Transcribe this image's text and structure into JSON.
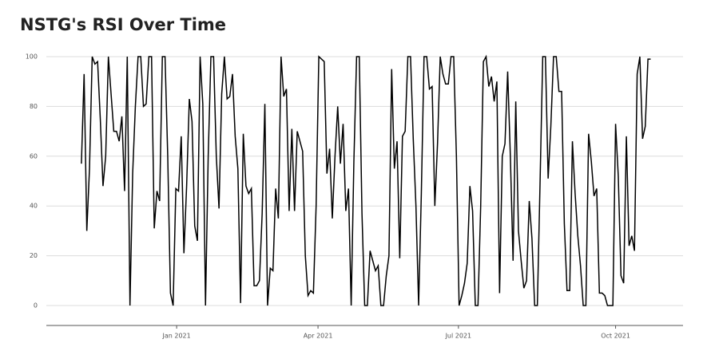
{
  "chart_data": {
    "type": "line",
    "title": "NSTG's RSI Over Time",
    "values": [
      57,
      93,
      30,
      55,
      100,
      97,
      98,
      75,
      48,
      60,
      100,
      85,
      70,
      70,
      66,
      76,
      46,
      100,
      0,
      53,
      80,
      100,
      100,
      80,
      81,
      100,
      100,
      31,
      46,
      42,
      100,
      100,
      60,
      5,
      0,
      47,
      46,
      68,
      21,
      48,
      83,
      74,
      32,
      26,
      100,
      81,
      0,
      60,
      100,
      100,
      60,
      39,
      85,
      100,
      83,
      84,
      93,
      68,
      55,
      1,
      69,
      48,
      45,
      47,
      8,
      8,
      10,
      37,
      81,
      0,
      15,
      14,
      47,
      35,
      100,
      84,
      87,
      38,
      71,
      38,
      70,
      66,
      62,
      20,
      4,
      6,
      5,
      40,
      100,
      99,
      98,
      53,
      63,
      35,
      60,
      80,
      57,
      73,
      38,
      47,
      0,
      58,
      100,
      100,
      37,
      0,
      0,
      22,
      18,
      14,
      16,
      0,
      0,
      12,
      20,
      95,
      55,
      66,
      19,
      68,
      70,
      100,
      100,
      67,
      40,
      0,
      45,
      100,
      100,
      87,
      88,
      40,
      65,
      100,
      93,
      89,
      89,
      100,
      100,
      60,
      0,
      4,
      9,
      17,
      48,
      38,
      0,
      0,
      40,
      98,
      100,
      88,
      92,
      82,
      90,
      5,
      60,
      65,
      94,
      60,
      18,
      82,
      30,
      18,
      7,
      10,
      42,
      27,
      0,
      0,
      49,
      100,
      100,
      51,
      72,
      100,
      100,
      86,
      86,
      33,
      6,
      6,
      66,
      45,
      28,
      16,
      0,
      0,
      69,
      58,
      44,
      47,
      5,
      5,
      4,
      0,
      0,
      0,
      73,
      52,
      12,
      9,
      68,
      24,
      28,
      22,
      93,
      100,
      67,
      72,
      99,
      99
    ],
    "color": "#000000",
    "xlim": [
      -13,
      223
    ],
    "xticks": [
      {
        "value": 35.3,
        "label": "Jan 2021"
      },
      {
        "value": 87.7,
        "label": "Apr 2021"
      },
      {
        "value": 139.75,
        "label": "Jul 2021"
      },
      {
        "value": 198,
        "label": "Oct 2021"
      }
    ],
    "ylim": [
      -8,
      104
    ],
    "yticks": [
      0,
      20,
      40,
      60,
      80,
      100
    ],
    "grid": true
  }
}
